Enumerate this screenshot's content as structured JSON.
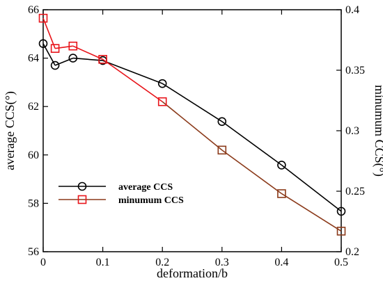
{
  "chart_data": {
    "type": "line",
    "xlabel": "deformation/b",
    "ylabel_left": "average CCS(°)",
    "ylabel_right": "minumum CCS(°)",
    "xlim": [
      0,
      0.5
    ],
    "ylim_left": [
      56,
      66
    ],
    "ylim_right": [
      0.2,
      0.4
    ],
    "x_ticks": [
      0,
      0.1,
      0.2,
      0.3,
      0.4,
      0.5
    ],
    "x_tick_labels": [
      "0",
      "0.1",
      "0.2",
      "0.3",
      "0.4",
      "0.5"
    ],
    "y_left_ticks": [
      56,
      58,
      60,
      62,
      64,
      66
    ],
    "y_left_tick_labels": [
      "56",
      "58",
      "60",
      "62",
      "64",
      "66"
    ],
    "y_right_ticks": [
      0.2,
      0.25,
      0.3,
      0.35,
      0.4
    ],
    "y_right_tick_labels": [
      "0.2",
      "0.25",
      "0.3",
      "0.35",
      "0.4"
    ],
    "grid": false,
    "legend_position": "lower-left",
    "series": [
      {
        "name": "average CCS",
        "axis": "left",
        "marker": "circle",
        "color": "#000000",
        "x": [
          0,
          0.02,
          0.05,
          0.1,
          0.2,
          0.3,
          0.4,
          0.5
        ],
        "y": [
          64.6,
          63.7,
          64.0,
          63.9,
          62.95,
          61.38,
          59.58,
          57.67
        ]
      },
      {
        "name": "minumum CCS",
        "axis": "right",
        "marker": "square",
        "color": "#e8141a",
        "color_after": "#8b3a1a",
        "x": [
          0,
          0.02,
          0.05,
          0.1,
          0.2,
          0.3,
          0.4,
          0.5
        ],
        "y": [
          0.393,
          0.368,
          0.37,
          0.359,
          0.324,
          0.284,
          0.248,
          0.217
        ]
      }
    ]
  }
}
